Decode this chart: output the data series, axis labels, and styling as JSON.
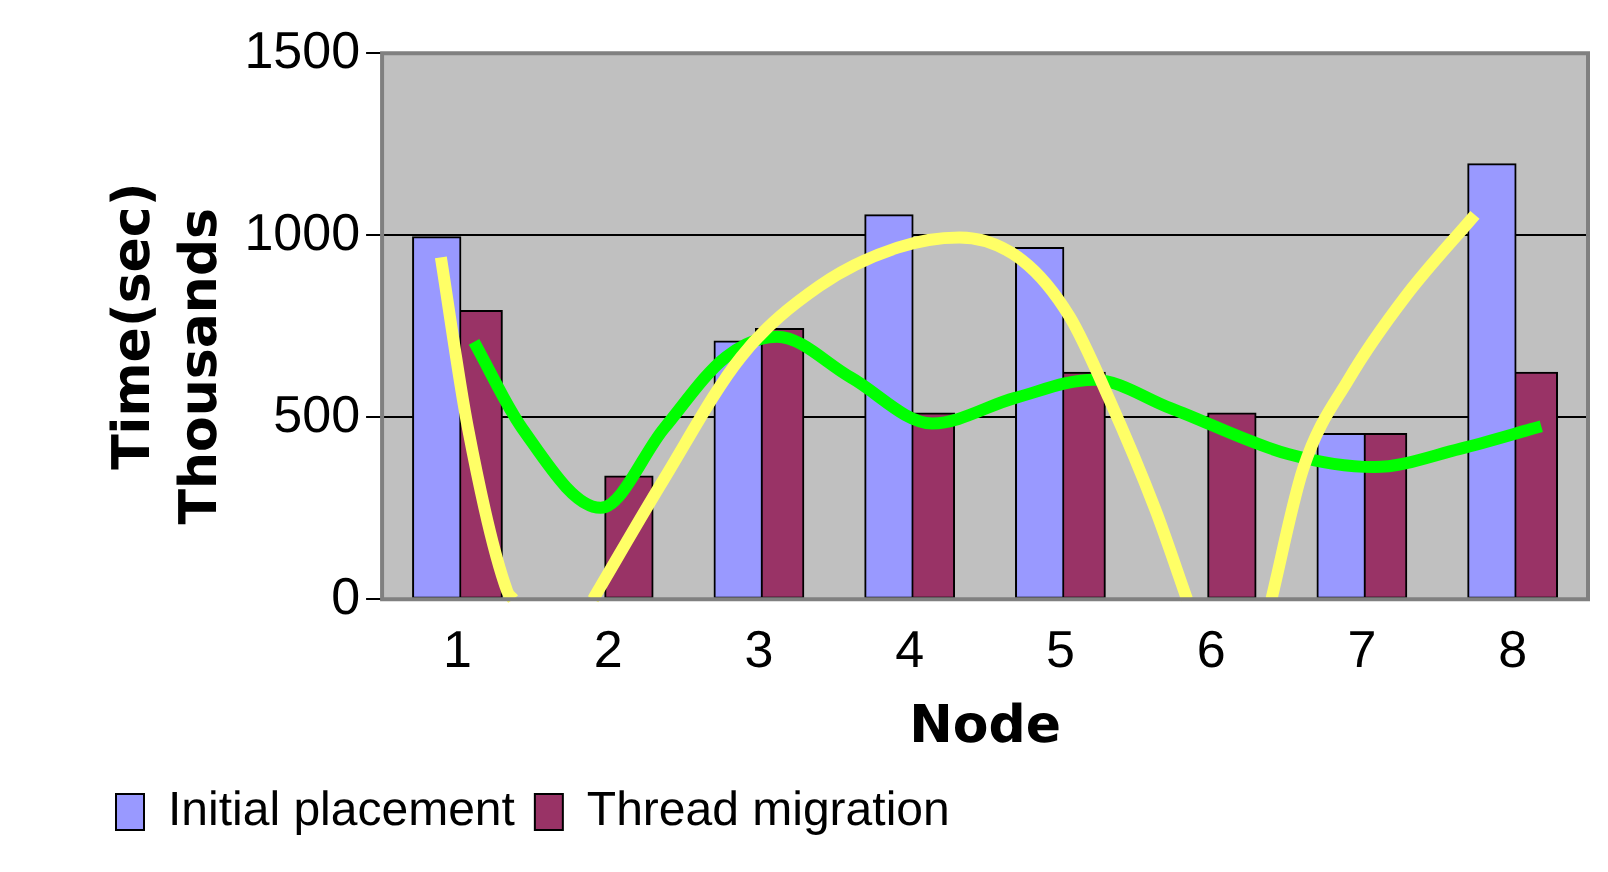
{
  "chart_data": {
    "type": "bar",
    "xlabel": "Node",
    "ylabel": "Time(sec)",
    "annotations": [
      "Thousands"
    ],
    "x": [
      1,
      2,
      3,
      4,
      5,
      6,
      7,
      8
    ],
    "xlim": [
      0.5,
      8.5
    ],
    "xticks": [
      1,
      2,
      3,
      4,
      5,
      6,
      7,
      8
    ],
    "ylim": [
      0,
      1500
    ],
    "yticks": [
      0,
      500,
      1000,
      1500
    ],
    "grid": "y",
    "legend": "bottom left",
    "series": [
      {
        "name": "Initial placement",
        "color": "#9999ff",
        "values": [
          995,
          0,
          709,
          1056,
          966,
          0,
          455,
          1196
        ]
      },
      {
        "name": "Thread migration",
        "color": "#993366",
        "values": [
          793,
          338,
          743,
          511,
          623,
          511,
          455,
          623
        ]
      },
      {
        "type": "line",
        "color": "#ffff66",
        "x": [
          0.89,
          1.07,
          1.33,
          1.37,
          1.58,
          1.85,
          1.9,
          2.37,
          2.88,
          3.4,
          3.92,
          4.33,
          4.75,
          5.06,
          5.32,
          5.63,
          5.84,
          6.12,
          6.4,
          6.61,
          6.92,
          7.29,
          7.75
        ],
        "values": [
          939,
          469,
          22,
          0,
          null,
          null,
          0,
          330,
          665,
          860,
          966,
          994,
          930,
          777,
          553,
          246,
          0,
          null,
          0,
          358,
          609,
          832,
          1056
        ]
      },
      {
        "type": "line",
        "color": "#00ff00",
        "x": [
          1.11,
          1.43,
          1.95,
          2.37,
          2.78,
          3.12,
          3.61,
          4.15,
          4.7,
          5.22,
          5.73,
          6.51,
          7.08,
          7.65,
          8.19
        ],
        "values": [
          707,
          469,
          251,
          469,
          665,
          721,
          609,
          483,
          553,
          603,
          525,
          399,
          363,
          413,
          475
        ]
      }
    ]
  }
}
